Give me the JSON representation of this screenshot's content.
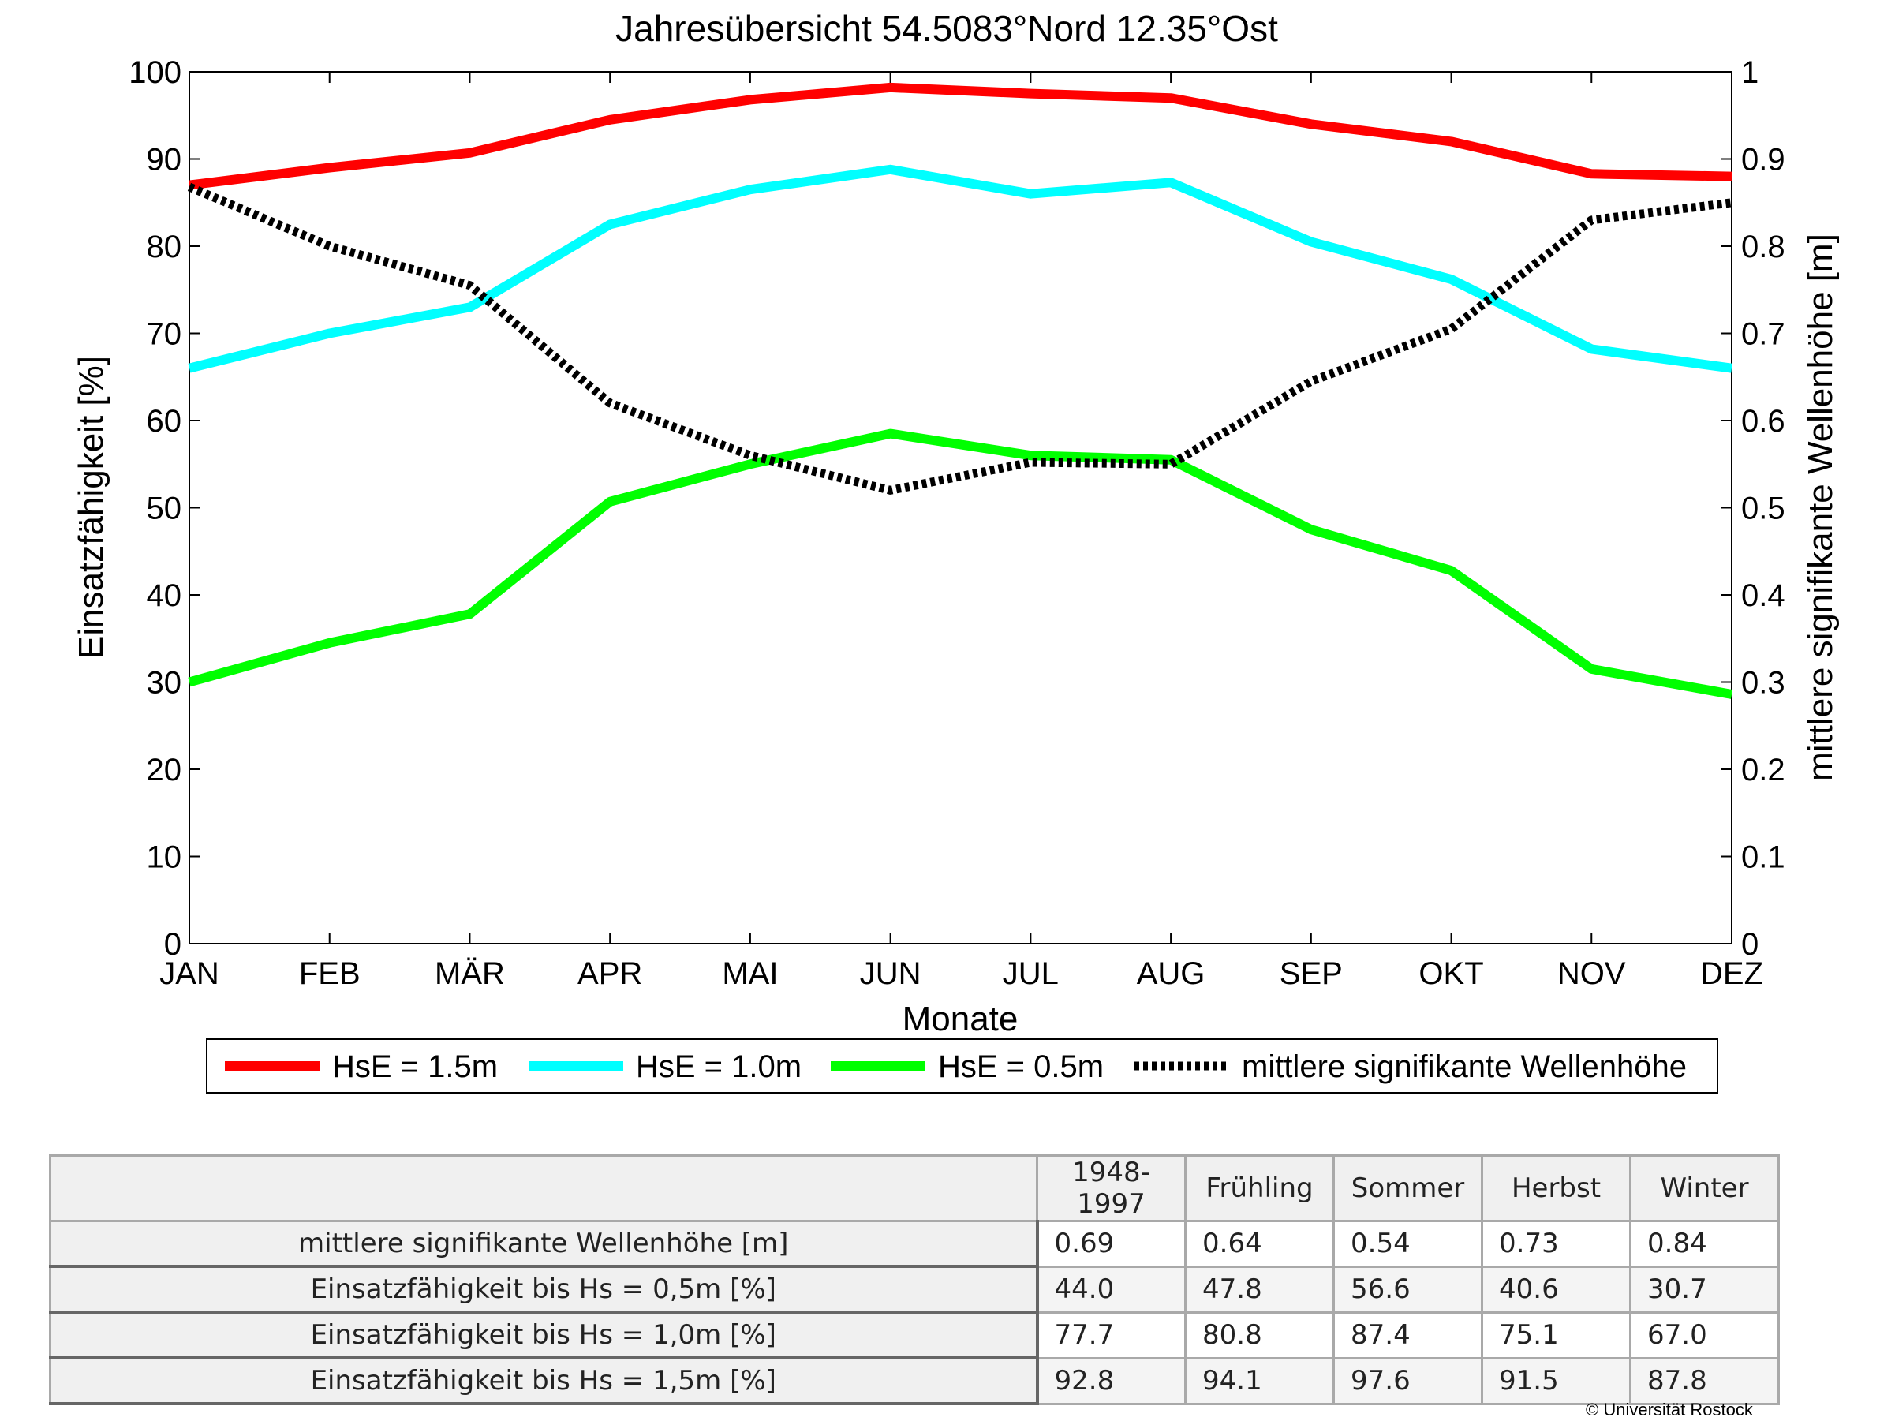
{
  "chart_data": {
    "type": "line",
    "title": "Jahresübersicht  54.5083°Nord  12.35°Ost",
    "xlabel": "Monate",
    "ylabel_left": "Einsatzfähigkeit [%]",
    "ylabel_right": "mittlere signifikante Wellenhöhe [m]",
    "categories": [
      "JAN",
      "FEB",
      "MÄR",
      "APR",
      "MAI",
      "JUN",
      "JUL",
      "AUG",
      "SEP",
      "OKT",
      "NOV",
      "DEZ"
    ],
    "ylim_left": [
      0,
      100
    ],
    "ylim_right": [
      0,
      1
    ],
    "yticks_left": [
      "0",
      "10",
      "20",
      "30",
      "40",
      "50",
      "60",
      "70",
      "80",
      "90",
      "100"
    ],
    "yticks_right": [
      "0",
      "0.1",
      "0.2",
      "0.3",
      "0.4",
      "0.5",
      "0.6",
      "0.7",
      "0.8",
      "0.9",
      "1"
    ],
    "grid": false,
    "legend_position": "bottom",
    "series": [
      {
        "name": "HsE = 1.5m",
        "axis": "left",
        "color": "#ff0000",
        "style": "solid",
        "values": [
          87.0,
          89.0,
          90.7,
          94.5,
          96.8,
          98.2,
          97.5,
          97.0,
          94.0,
          92.0,
          88.3,
          88.0
        ]
      },
      {
        "name": "HsE = 1.0m",
        "axis": "left",
        "color": "#00ffff",
        "style": "solid",
        "values": [
          66.0,
          70.0,
          73.0,
          82.5,
          86.5,
          88.8,
          86.0,
          87.3,
          80.5,
          76.2,
          68.2,
          66.0
        ]
      },
      {
        "name": "HsE = 0.5m",
        "axis": "left",
        "color": "#00ff00",
        "style": "solid",
        "values": [
          30.0,
          34.5,
          37.8,
          50.7,
          55.0,
          58.5,
          56.0,
          55.5,
          47.5,
          42.8,
          31.5,
          28.6
        ]
      },
      {
        "name": "mittlere signifikante Wellenhöhe",
        "axis": "right",
        "color": "#000000",
        "style": "dotted",
        "values": [
          0.868,
          0.8,
          0.755,
          0.62,
          0.56,
          0.52,
          0.552,
          0.55,
          0.645,
          0.705,
          0.83,
          0.85
        ]
      }
    ]
  },
  "table": {
    "header": [
      "1948-1997",
      "Frühling",
      "Sommer",
      "Herbst",
      "Winter"
    ],
    "rows": [
      {
        "label": "mittlere signifikante Wellenhöhe [m]",
        "values": [
          "0.69",
          "0.64",
          "0.54",
          "0.73",
          "0.84"
        ]
      },
      {
        "label": "Einsatzfähigkeit bis Hs = 0,5m [%]",
        "values": [
          "44.0",
          "47.8",
          "56.6",
          "40.6",
          "30.7"
        ]
      },
      {
        "label": "Einsatzfähigkeit bis Hs = 1,0m [%]",
        "values": [
          "77.7",
          "80.8",
          "87.4",
          "75.1",
          "67.0"
        ]
      },
      {
        "label": "Einsatzfähigkeit bis Hs = 1,5m [%]",
        "values": [
          "92.8",
          "94.1",
          "97.6",
          "91.5",
          "87.8"
        ]
      }
    ]
  },
  "footer": {
    "copyright": "© Universität Rostock"
  }
}
